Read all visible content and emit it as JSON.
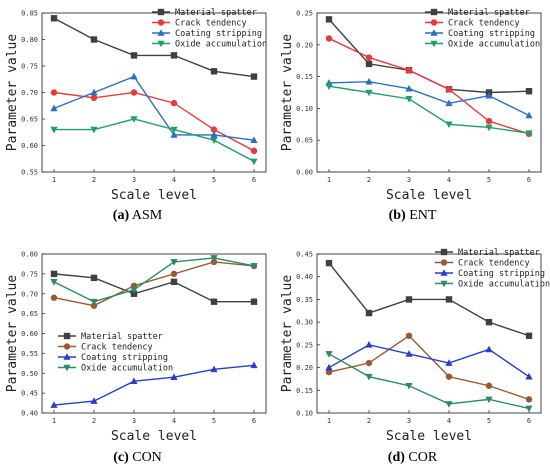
{
  "figure": {
    "captions": [
      {
        "letter": "(a)",
        "name": "ASM"
      },
      {
        "letter": "(b)",
        "name": "ENT"
      },
      {
        "letter": "(c)",
        "name": "CON"
      },
      {
        "letter": "(d)",
        "name": "COR"
      }
    ]
  },
  "chart_data": [
    {
      "type": "line",
      "panel": "(a) ASM",
      "xlabel": "Scale level",
      "ylabel": "Parameter value",
      "x": [
        1,
        2,
        3,
        4,
        5,
        6
      ],
      "ylim": [
        0.55,
        0.85
      ],
      "yticks": [
        0.55,
        0.6,
        0.65,
        0.7,
        0.75,
        0.8,
        0.85
      ],
      "grid": false,
      "legend": "top-right",
      "series": [
        {
          "name": "Material spatter",
          "color": "#404040",
          "marker": "square",
          "values": [
            0.84,
            0.8,
            0.77,
            0.77,
            0.74,
            0.73
          ]
        },
        {
          "name": "Crack tendency",
          "color": "#e8393b",
          "marker": "circle",
          "values": [
            0.7,
            0.69,
            0.7,
            0.68,
            0.63,
            0.59
          ]
        },
        {
          "name": "Coating stripping",
          "color": "#2a6fc7",
          "marker": "triangle-up",
          "values": [
            0.67,
            0.7,
            0.73,
            0.62,
            0.62,
            0.61
          ]
        },
        {
          "name": "Oxide accumulation",
          "color": "#1fa068",
          "marker": "triangle-down",
          "values": [
            0.63,
            0.63,
            0.65,
            0.63,
            0.61,
            0.57
          ]
        }
      ]
    },
    {
      "type": "line",
      "panel": "(b) ENT",
      "xlabel": "Scale level",
      "ylabel": "Parameter value",
      "x": [
        1,
        2,
        3,
        4,
        5,
        6
      ],
      "ylim": [
        0.0,
        0.25
      ],
      "yticks": [
        0.0,
        0.05,
        0.1,
        0.15,
        0.2,
        0.25
      ],
      "grid": false,
      "legend": "top-right",
      "series": [
        {
          "name": "Material spatter",
          "color": "#404040",
          "marker": "square",
          "values": [
            0.24,
            0.17,
            0.16,
            0.13,
            0.125,
            0.127
          ]
        },
        {
          "name": "Crack tendency",
          "color": "#e8393b",
          "marker": "circle",
          "values": [
            0.21,
            0.18,
            0.16,
            0.13,
            0.08,
            0.06
          ]
        },
        {
          "name": "Coating stripping",
          "color": "#2a6fc7",
          "marker": "triangle-up",
          "values": [
            0.14,
            0.142,
            0.131,
            0.108,
            0.12,
            0.089
          ]
        },
        {
          "name": "Oxide accumulation",
          "color": "#1fa068",
          "marker": "triangle-down",
          "values": [
            0.135,
            0.125,
            0.115,
            0.075,
            0.07,
            0.061
          ]
        }
      ]
    },
    {
      "type": "line",
      "panel": "(c) CON",
      "xlabel": "Scale level",
      "ylabel": "Parameter value",
      "x": [
        1,
        2,
        3,
        4,
        5,
        6
      ],
      "ylim": [
        0.4,
        0.8
      ],
      "yticks": [
        0.4,
        0.45,
        0.5,
        0.55,
        0.6,
        0.65,
        0.7,
        0.75,
        0.8
      ],
      "grid": false,
      "legend": "center-right",
      "series": [
        {
          "name": "Material spatter",
          "color": "#404040",
          "marker": "square",
          "values": [
            0.75,
            0.74,
            0.7,
            0.73,
            0.68,
            0.68
          ]
        },
        {
          "name": "Crack tendency",
          "color": "#9a5a2e",
          "marker": "circle",
          "values": [
            0.69,
            0.67,
            0.72,
            0.75,
            0.78,
            0.77
          ]
        },
        {
          "name": "Coating stripping",
          "color": "#2a3fc7",
          "marker": "triangle-up",
          "values": [
            0.42,
            0.43,
            0.48,
            0.49,
            0.51,
            0.52
          ]
        },
        {
          "name": "Oxide accumulation",
          "color": "#2a8a6a",
          "marker": "triangle-down",
          "values": [
            0.73,
            0.68,
            0.71,
            0.78,
            0.79,
            0.77
          ]
        }
      ]
    },
    {
      "type": "line",
      "panel": "(d) COR",
      "xlabel": "Scale level",
      "ylabel": "Parameter value",
      "x": [
        1,
        2,
        3,
        4,
        5,
        6
      ],
      "ylim": [
        0.1,
        0.45
      ],
      "yticks": [
        0.1,
        0.15,
        0.2,
        0.25,
        0.3,
        0.35,
        0.4,
        0.45
      ],
      "grid": false,
      "legend": "top-right",
      "series": [
        {
          "name": "Material spatter",
          "color": "#404040",
          "marker": "square",
          "values": [
            0.43,
            0.32,
            0.35,
            0.35,
            0.3,
            0.27
          ]
        },
        {
          "name": "Crack tendency",
          "color": "#9a5a2e",
          "marker": "circle",
          "values": [
            0.19,
            0.21,
            0.27,
            0.18,
            0.16,
            0.13
          ]
        },
        {
          "name": "Coating stripping",
          "color": "#2a3fc7",
          "marker": "triangle-up",
          "values": [
            0.2,
            0.25,
            0.23,
            0.21,
            0.24,
            0.18
          ]
        },
        {
          "name": "Oxide accumulation",
          "color": "#2a8a6a",
          "marker": "triangle-down",
          "values": [
            0.23,
            0.18,
            0.16,
            0.12,
            0.13,
            0.11
          ]
        }
      ]
    }
  ]
}
